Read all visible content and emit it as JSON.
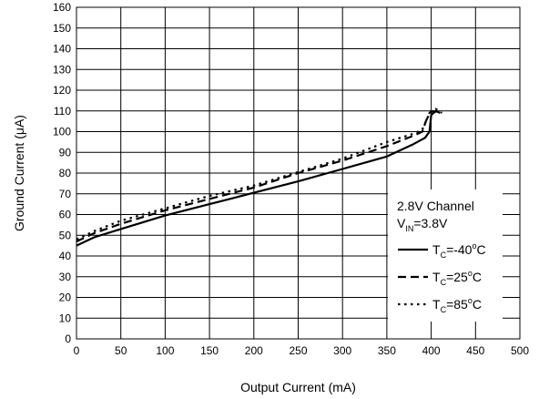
{
  "chart_data": {
    "type": "line",
    "xlabel": "Output Current (mA)",
    "ylabel_main": "Ground Current (",
    "ylabel_mu": "μ",
    "ylabel_tail": "A)",
    "xlim": [
      0,
      500
    ],
    "ylim": [
      0,
      160
    ],
    "x_ticks": [
      "0",
      "50",
      "100",
      "150",
      "200",
      "250",
      "300",
      "350",
      "400",
      "450",
      "500"
    ],
    "y_ticks": [
      "0",
      "10",
      "20",
      "30",
      "40",
      "50",
      "60",
      "70",
      "80",
      "90",
      "100",
      "110",
      "120",
      "130",
      "140",
      "150",
      "160"
    ],
    "grid": true,
    "legend": {
      "placement": "bottom-right",
      "line1": "2.8V Channel",
      "line2_prefix": "V",
      "line2_sub": "IN",
      "line2_suffix": "=3.8V",
      "entries": [
        {
          "prefix": "T",
          "sub": "C",
          "mid": "=-40",
          "sup": "o",
          "unit": "C"
        },
        {
          "prefix": "T",
          "sub": "C",
          "mid": "=25",
          "sup": "o",
          "unit": "C"
        },
        {
          "prefix": "T",
          "sub": "C",
          "mid": "=85",
          "sup": "o",
          "unit": "C"
        }
      ]
    },
    "series": [
      {
        "style": "solid",
        "color": "#000000",
        "x": [
          0,
          20,
          50,
          100,
          150,
          200,
          250,
          300,
          350,
          380,
          393,
          398,
          400,
          405,
          410
        ],
        "y": [
          45,
          49,
          53,
          59.5,
          65,
          70.5,
          76,
          82,
          88,
          94,
          97,
          100,
          108,
          110,
          109
        ]
      },
      {
        "style": "dashed",
        "color": "#000000",
        "x": [
          0,
          20,
          50,
          100,
          150,
          200,
          250,
          300,
          350,
          380,
          390,
          394,
          398,
          402,
          406
        ],
        "y": [
          47,
          51,
          55.5,
          62,
          67.5,
          73,
          80,
          86,
          93,
          98,
          100,
          105,
          109,
          110,
          109
        ]
      },
      {
        "style": "dotted",
        "color": "#000000",
        "x": [
          0,
          20,
          50,
          100,
          150,
          200,
          250,
          300,
          350,
          380,
          390,
          395,
          400,
          405,
          412
        ],
        "y": [
          48,
          52,
          57,
          63,
          69,
          74,
          80.5,
          87,
          95,
          99,
          101,
          106,
          110,
          111,
          109
        ]
      }
    ]
  }
}
